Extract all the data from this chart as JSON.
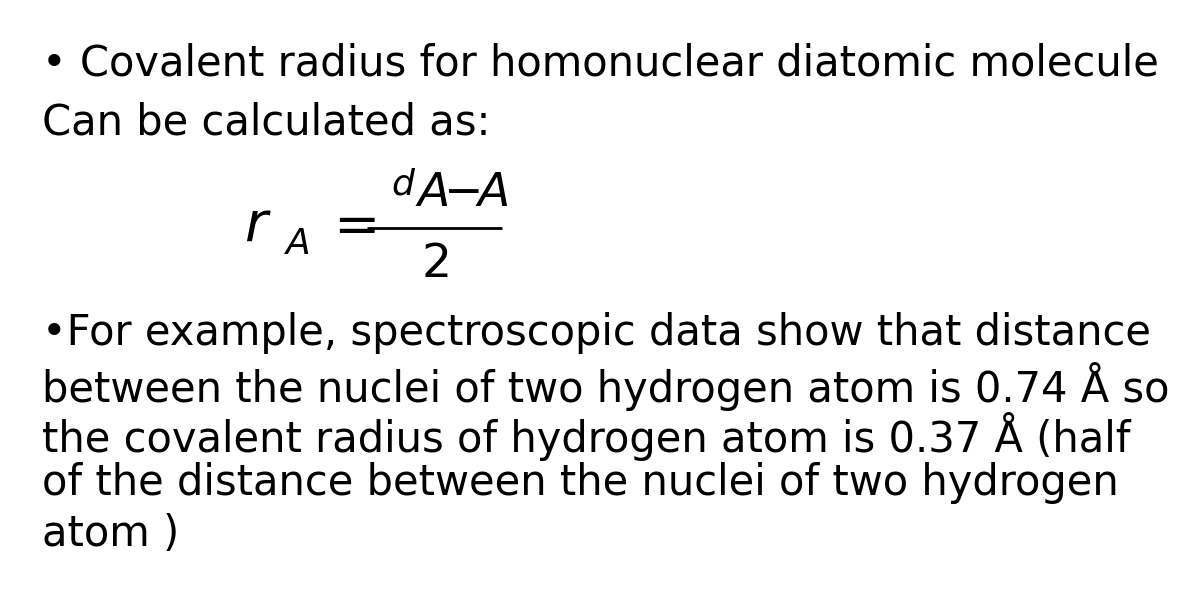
{
  "bg_color": "#ffffff",
  "line1": "• Covalent radius for homonuclear diatomic molecule",
  "line2": "Can be calculated as:",
  "line3": "•For example, spectroscopic data show that distance",
  "line4": "between the nuclei of two hydrogen atom is 0.74 Å so",
  "line5": "the covalent radius of hydrogen atom is 0.37 Å (half",
  "line6": "of the distance between the nuclei of two hydrogen",
  "line7": "atom )",
  "text_color": "#000000",
  "fontsize_main": 30,
  "fontsize_formula_large": 40,
  "fontsize_formula_med": 34
}
